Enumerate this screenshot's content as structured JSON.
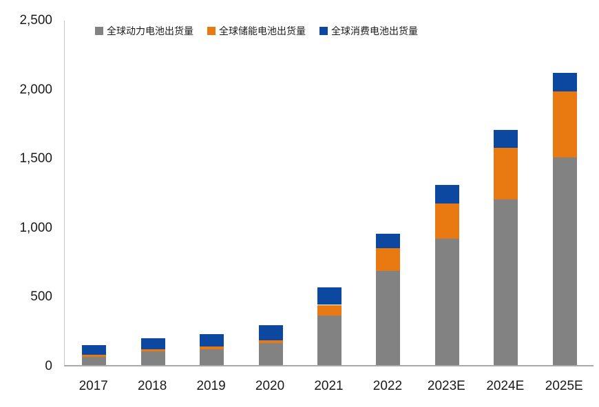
{
  "chart_data": {
    "type": "bar",
    "stacked": true,
    "title": "",
    "xlabel": "",
    "ylabel": "",
    "categories": [
      "2017",
      "2018",
      "2019",
      "2020",
      "2021",
      "2022",
      "2023E",
      "2024E",
      "2025E"
    ],
    "series": [
      {
        "key": "power",
        "name": "全球动力电池出货量",
        "color": "#828282",
        "values": [
          60,
          100,
          115,
          160,
          360,
          680,
          915,
          1200,
          1500
        ]
      },
      {
        "key": "storage",
        "name": "全球储能电池出货量",
        "color": "#E87A11",
        "values": [
          15,
          13,
          20,
          20,
          75,
          165,
          255,
          370,
          480
        ]
      },
      {
        "key": "consumer",
        "name": "全球消费电池出货量",
        "color": "#0D48A0",
        "values": [
          70,
          80,
          90,
          110,
          125,
          105,
          130,
          130,
          130
        ]
      }
    ],
    "totals": [
      145,
      193,
      225,
      290,
      560,
      950,
      1300,
      1700,
      2110
    ],
    "ylim": [
      0,
      2500
    ],
    "ytick_interval": 500,
    "ytick_labels": [
      "0",
      "500",
      "1,000",
      "1,500",
      "2,000",
      "2,500"
    ],
    "grid": false,
    "legend_position": "top"
  },
  "colors": {
    "background": "#FFFFFF",
    "axis_line": "#C6C6C6",
    "baseline": "#A8A8A8",
    "text": "#1A1A1A"
  }
}
